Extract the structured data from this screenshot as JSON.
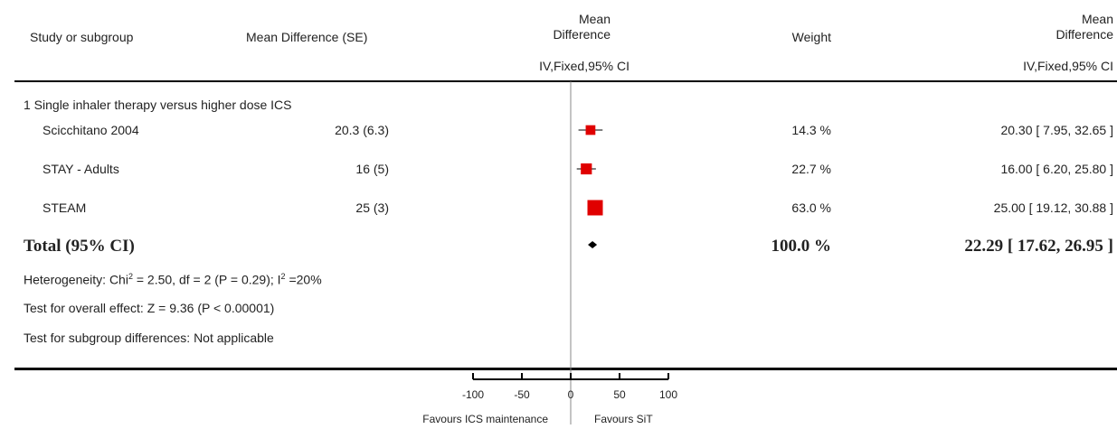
{
  "header": {
    "study_col": "Study or subgroup",
    "md_se_col": "Mean Difference (SE)",
    "plot_col_line1": "Mean",
    "plot_col_line2": "Difference",
    "plot_col_sub": "IV,Fixed,95% CI",
    "weight_col": "Weight",
    "md_col_line1": "Mean",
    "md_col_line2": "Difference",
    "md_col_sub": "IV,Fixed,95% CI"
  },
  "subgroup": {
    "title": "1 Single inhaler therapy versus higher dose ICS"
  },
  "studies": [
    {
      "name": "Scicchitano 2004",
      "md_se": "20.3 (6.3)",
      "weight": "14.3 %",
      "ci_text": "20.30 [ 7.95, 32.65 ]"
    },
    {
      "name": "STAY - Adults",
      "md_se": "16 (5)",
      "weight": "22.7 %",
      "ci_text": "16.00 [ 6.20, 25.80 ]"
    },
    {
      "name": "STEAM",
      "md_se": "25 (3)",
      "weight": "63.0 %",
      "ci_text": "25.00 [ 19.12, 30.88 ]"
    }
  ],
  "total": {
    "label": "Total (95% CI)",
    "weight": "100.0 %",
    "ci_text": "22.29 [ 17.62, 26.95 ]"
  },
  "footer": {
    "heterogeneity_prefix": "Heterogeneity: Chi",
    "heterogeneity_mid": " = 2.50, df = 2 (P = 0.29); I",
    "heterogeneity_suffix": " =20%",
    "sup2": "2",
    "overall_effect": "Test for overall effect: Z = 9.36 (P < 0.00001)",
    "subgroup_diff": "Test for subgroup differences: Not applicable"
  },
  "axis": {
    "favours_left": "Favours ICS maintenance",
    "favours_right": "Favours SiT"
  },
  "chart_data": {
    "type": "forest",
    "x_ticks": [
      -100,
      -50,
      0,
      50,
      100
    ],
    "xlim": [
      -100,
      100
    ],
    "studies": [
      {
        "name": "Scicchitano 2004",
        "estimate": 20.3,
        "ci": [
          7.95,
          32.65
        ],
        "weight": 14.3
      },
      {
        "name": "STAY - Adults",
        "estimate": 16.0,
        "ci": [
          6.2,
          25.8
        ],
        "weight": 22.7
      },
      {
        "name": "STEAM",
        "estimate": 25.0,
        "ci": [
          19.12,
          30.88
        ],
        "weight": 63.0
      }
    ],
    "pooled": {
      "estimate": 22.29,
      "ci": [
        17.62,
        26.95
      ]
    },
    "marker_color": "#e00000"
  }
}
